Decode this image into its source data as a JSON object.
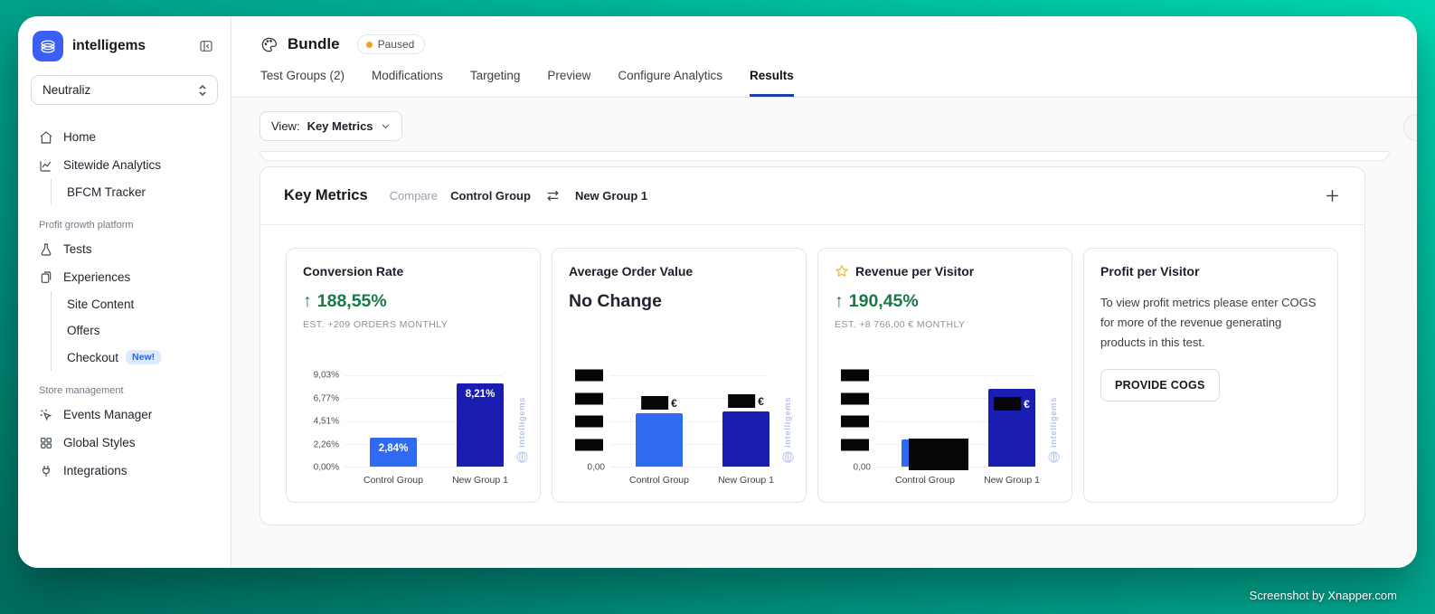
{
  "colors": {
    "brand_blue": "#3b5ef5",
    "bar_light_blue": "#2e6bf0",
    "bar_dark_blue": "#1a1db1",
    "positive_green": "#177a47",
    "paused_dot": "#f0a41c",
    "new_badge_bg": "#dbeafe",
    "new_badge_text": "#2563eb",
    "active_tab_underline": "#1e40af",
    "watermark_blue": "#b6c3f0",
    "background_teal": "#00a98f"
  },
  "sidebar": {
    "brand": "intelligems",
    "workspace": "Neutraliz",
    "primary": [
      {
        "label": "Home"
      },
      {
        "label": "Sitewide Analytics"
      },
      {
        "label": "BFCM Tracker"
      }
    ],
    "sections": [
      {
        "label": "Profit growth platform",
        "items": [
          {
            "label": "Tests"
          },
          {
            "label": "Experiences"
          },
          {
            "label": "Site Content"
          },
          {
            "label": "Offers"
          },
          {
            "label": "Checkout",
            "badge": "New!"
          }
        ]
      },
      {
        "label": "Store management",
        "items": [
          {
            "label": "Events Manager"
          },
          {
            "label": "Global Styles"
          },
          {
            "label": "Integrations"
          }
        ]
      }
    ]
  },
  "header": {
    "title": "Bundle",
    "status": "Paused",
    "tabs": [
      "Test Groups (2)",
      "Modifications",
      "Targeting",
      "Preview",
      "Configure Analytics",
      "Results"
    ],
    "active_tab": "Results"
  },
  "toolbar": {
    "view_label": "View:",
    "view_value": "Key Metrics"
  },
  "panel": {
    "title": "Key Metrics",
    "compare_label": "Compare",
    "compare_a": "Control Group",
    "compare_b": "New Group 1"
  },
  "cards": [
    {
      "title": "Conversion Rate",
      "delta": "188,55%",
      "direction": "up",
      "estimate": "EST. +209 ORDERS MONTHLY"
    },
    {
      "title": "Average Order Value",
      "delta": "No Change",
      "direction": "none",
      "estimate": ""
    },
    {
      "title": "Revenue per Visitor",
      "delta": "190,45%",
      "direction": "up",
      "estimate": "EST. +8 766,00 € MONTHLY",
      "starred": true
    },
    {
      "title": "Profit per Visitor",
      "body": "To view profit metrics please enter COGS for more of the revenue generating products in this test.",
      "button": "PROVIDE COGS"
    }
  ],
  "chart_data": [
    {
      "type": "bar",
      "title": "Conversion Rate",
      "categories": [
        "Control Group",
        "New Group 1"
      ],
      "values": [
        2.84,
        8.21
      ],
      "value_labels": [
        "2,84%",
        "8,21%"
      ],
      "unit": "%",
      "yticks": [
        "9,03%",
        "6,77%",
        "4,51%",
        "2,26%",
        "0,00%"
      ],
      "ylim": [
        0,
        9.03
      ],
      "grid": true,
      "legend": false,
      "bar_colors": [
        "#2e6bf0",
        "#1a1db1"
      ],
      "bar_height_frac": [
        0.314,
        0.909
      ],
      "watermark": "intelligems"
    },
    {
      "type": "bar",
      "title": "Average Order Value",
      "categories": [
        "Control Group",
        "New Group 1"
      ],
      "values": [
        null,
        null
      ],
      "values_redacted": true,
      "unit": "€",
      "yticks": [
        null,
        null,
        null,
        null,
        "0,00"
      ],
      "yticks_redacted": [
        true,
        true,
        true,
        true,
        false
      ],
      "grid": true,
      "legend": false,
      "bar_colors": [
        "#2e6bf0",
        "#1a1db1"
      ],
      "bar_height_frac": [
        0.58,
        0.6
      ],
      "watermark": "intelligems"
    },
    {
      "type": "bar",
      "title": "Revenue per Visitor",
      "categories": [
        "Control Group",
        "New Group 1"
      ],
      "values": [
        null,
        null
      ],
      "values_redacted": true,
      "control_bar_redacted": true,
      "unit": "€",
      "yticks": [
        null,
        null,
        null,
        null,
        "0,00"
      ],
      "yticks_redacted": [
        true,
        true,
        true,
        true,
        false
      ],
      "grid": true,
      "legend": false,
      "bar_colors": [
        "#2e6bf0",
        "#1a1db1"
      ],
      "bar_height_frac": [
        0.3,
        0.85
      ],
      "watermark": "intelligems"
    }
  ],
  "footer": {
    "credit": "Screenshot by Xnapper.com"
  }
}
